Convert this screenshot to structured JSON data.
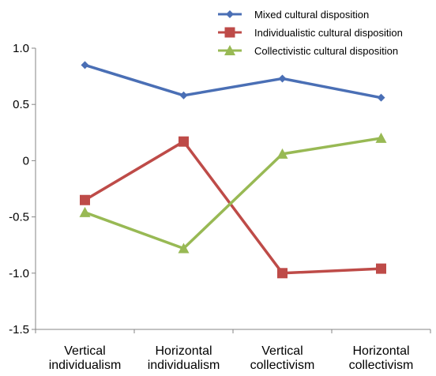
{
  "chart_data": {
    "type": "line",
    "categories": [
      [
        "Vertical",
        "individualism"
      ],
      [
        "Horizontal",
        "individualism"
      ],
      [
        "Vertical",
        "collectivism"
      ],
      [
        "Horizontal",
        "collectivism"
      ]
    ],
    "ylim": [
      -1.5,
      1.0
    ],
    "yticks": [
      1.0,
      0.5,
      0,
      -0.5,
      -1.0,
      -1.5
    ],
    "ytick_labels": [
      "1.0",
      "0.5",
      "0",
      "-0.5",
      "-1.0",
      "-1.5"
    ],
    "grid": false,
    "legend_position": "top-right",
    "series": [
      {
        "name": "Mixed cultural disposition",
        "color": "#4a6fb5",
        "marker": "diamond",
        "values": [
          0.85,
          0.58,
          0.73,
          0.56
        ]
      },
      {
        "name": "Individualistic cultural disposition",
        "color": "#be4b48",
        "marker": "square",
        "values": [
          -0.35,
          0.17,
          -1.0,
          -0.96
        ]
      },
      {
        "name": "Collectivistic cultural disposition",
        "color": "#98b954",
        "marker": "triangle",
        "values": [
          -0.46,
          -0.78,
          0.06,
          0.2
        ]
      }
    ]
  }
}
